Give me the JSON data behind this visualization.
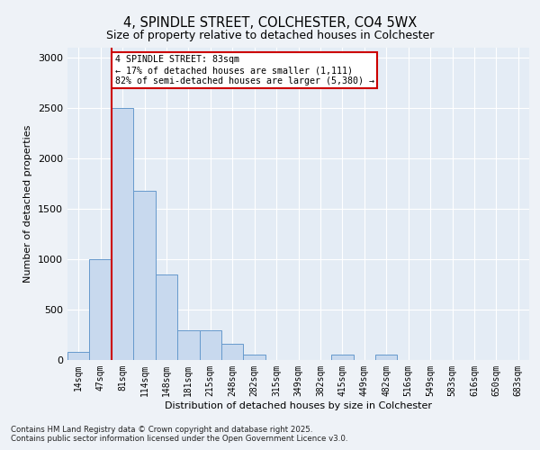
{
  "title_line1": "4, SPINDLE STREET, COLCHESTER, CO4 5WX",
  "title_line2": "Size of property relative to detached houses in Colchester",
  "xlabel": "Distribution of detached houses by size in Colchester",
  "ylabel": "Number of detached properties",
  "categories": [
    "14sqm",
    "47sqm",
    "81sqm",
    "114sqm",
    "148sqm",
    "181sqm",
    "215sqm",
    "248sqm",
    "282sqm",
    "315sqm",
    "349sqm",
    "382sqm",
    "415sqm",
    "449sqm",
    "482sqm",
    "516sqm",
    "549sqm",
    "583sqm",
    "616sqm",
    "650sqm",
    "683sqm"
  ],
  "values": [
    80,
    1000,
    2500,
    1680,
    850,
    290,
    290,
    160,
    50,
    0,
    0,
    0,
    50,
    0,
    50,
    0,
    0,
    0,
    0,
    0,
    0
  ],
  "bar_color": "#c8d9ee",
  "bar_edge_color": "#6699cc",
  "vline_x_idx": 2,
  "vline_color": "#cc0000",
  "annotation_text": "4 SPINDLE STREET: 83sqm\n← 17% of detached houses are smaller (1,111)\n82% of semi-detached houses are larger (5,380) →",
  "annotation_box_edgecolor": "#cc0000",
  "ylim": [
    0,
    3100
  ],
  "yticks": [
    0,
    500,
    1000,
    1500,
    2000,
    2500,
    3000
  ],
  "footer_line1": "Contains HM Land Registry data © Crown copyright and database right 2025.",
  "footer_line2": "Contains public sector information licensed under the Open Government Licence v3.0.",
  "bg_color": "#eef2f7",
  "plot_bg_color": "#e4ecf5",
  "grid_color": "#ffffff"
}
